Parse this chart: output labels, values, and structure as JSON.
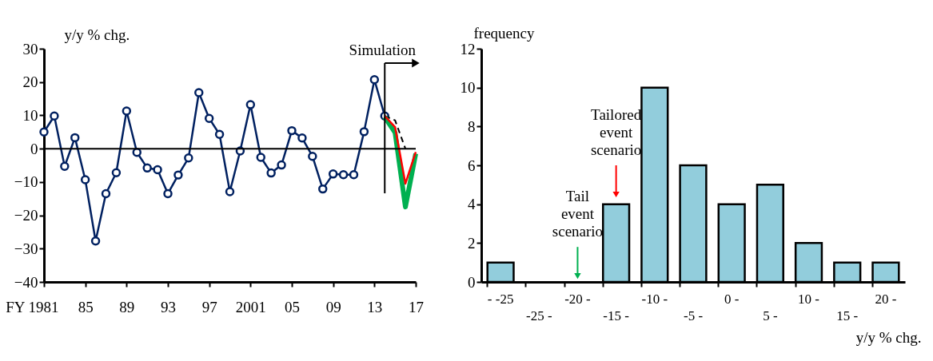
{
  "chart_data": [
    {
      "type": "line",
      "ylabel": "y/y % chg.",
      "xlim": [
        1981,
        2017
      ],
      "ylim": [
        -40,
        30
      ],
      "xticks": [
        {
          "value": 1981,
          "label": "FY 1981"
        },
        {
          "value": 1985,
          "label": "85"
        },
        {
          "value": 1989,
          "label": "89"
        },
        {
          "value": 1993,
          "label": "93"
        },
        {
          "value": 1997,
          "label": "97"
        },
        {
          "value": 2001,
          "label": "2001"
        },
        {
          "value": 2005,
          "label": "05"
        },
        {
          "value": 2009,
          "label": "09"
        },
        {
          "value": 2013,
          "label": "13"
        },
        {
          "value": 2017,
          "label": "17"
        }
      ],
      "yticks": [
        30,
        20,
        10,
        0,
        -10,
        -20,
        -30,
        -40
      ],
      "grid": false,
      "ref_lines": [
        {
          "axis": "y",
          "value": 0,
          "color": "#000000"
        },
        {
          "axis": "x",
          "value": 2014,
          "label": "Simulation",
          "color": "#000000"
        }
      ],
      "series": [
        {
          "color": "#002060",
          "marker": "circle",
          "line_style": "solid",
          "x": [
            1981,
            1982,
            1983,
            1984,
            1985,
            1986,
            1987,
            1988,
            1989,
            1990,
            1991,
            1992,
            1993,
            1994,
            1995,
            1996,
            1997,
            1998,
            1999,
            2000,
            2001,
            2002,
            2003,
            2004,
            2005,
            2006,
            2007,
            2008,
            2009,
            2010,
            2011,
            2012,
            2013,
            2014
          ],
          "values": [
            5,
            9.8,
            -5.3,
            3.3,
            -9.3,
            -27.7,
            -13.5,
            -7.2,
            11.3,
            -1.1,
            -5.8,
            -6.3,
            -13.5,
            -7.9,
            -2.8,
            16.8,
            9.1,
            4.3,
            -12.9,
            -0.7,
            13.2,
            -2.6,
            -7.3,
            -4.9,
            5.4,
            3.2,
            -2.3,
            -12.1,
            -7.6,
            -7.8,
            -7.8,
            5.1,
            20.7,
            9.8
          ]
        },
        {
          "color": "#000000",
          "marker": "none",
          "line_style": "dashed",
          "x": [
            2014,
            2015,
            2016
          ],
          "values": [
            9.8,
            8.5,
            0
          ]
        },
        {
          "color": "#00b050",
          "marker": "none",
          "line_style": "solid",
          "x": [
            2014,
            2015,
            2016,
            2017
          ],
          "values": [
            9.5,
            4.8,
            -17.5,
            -1.5
          ]
        },
        {
          "color": "#ff0000",
          "marker": "none",
          "line_style": "solid",
          "x": [
            2014,
            2015,
            2016,
            2017
          ],
          "values": [
            9.8,
            6.5,
            -10.5,
            -1
          ]
        }
      ]
    },
    {
      "type": "bar",
      "ylabel": "frequency",
      "xlabel": "y/y % chg.",
      "ylim": [
        0,
        12
      ],
      "yticks": [
        0,
        2,
        4,
        6,
        8,
        10,
        12
      ],
      "grid": false,
      "categories": [
        "- -25",
        "-25 -",
        "-20 -",
        "-15 -",
        "-10 -",
        "-5 -",
        "0 -",
        "5 -",
        "10 -",
        "15 -",
        "20 -"
      ],
      "values": [
        1,
        0,
        0,
        4,
        10,
        6,
        4,
        5,
        2,
        1,
        1
      ],
      "color": "#92cddc",
      "annotations": [
        {
          "text": "Tailored\nevent\nscenario",
          "x": "-15 -",
          "y": 4.5
        },
        {
          "text": "Tail\nevent\nscenario",
          "x": "-20 -",
          "y": 0.3
        }
      ]
    }
  ]
}
